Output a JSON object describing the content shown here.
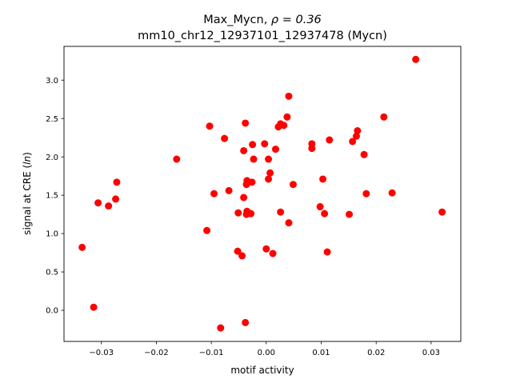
{
  "chart_data": {
    "type": "scatter",
    "title_line1_prefix": "Max_Mycn, ",
    "title_rho": "ρ = 0.36",
    "title_line2": "mm10_chr12_12937101_12937478 (Mycn)",
    "xlabel": "motif activity",
    "ylabel_prefix": "signal at CRE (",
    "ylabel_ln": "ln",
    "ylabel_suffix": ")",
    "xlim": [
      -0.0368,
      0.0354
    ],
    "ylim": [
      -0.406,
      3.44
    ],
    "xticks": [
      -0.03,
      -0.02,
      -0.01,
      0.0,
      0.01,
      0.02,
      0.03
    ],
    "xtick_labels": [
      "−0.03",
      "−0.02",
      "−0.01",
      "0.00",
      "0.01",
      "0.02",
      "0.03"
    ],
    "yticks": [
      0.0,
      0.5,
      1.0,
      1.5,
      2.0,
      2.5,
      3.0
    ],
    "ytick_labels": [
      "0.0",
      "0.5",
      "1.0",
      "1.5",
      "2.0",
      "2.5",
      "3.0"
    ],
    "grid": false,
    "marker_color": "#ff0000",
    "points": [
      [
        -0.0335,
        0.82
      ],
      [
        -0.0314,
        0.04
      ],
      [
        -0.0306,
        1.4
      ],
      [
        -0.0287,
        1.36
      ],
      [
        -0.0274,
        1.45
      ],
      [
        -0.0272,
        1.67
      ],
      [
        -0.0163,
        1.97
      ],
      [
        -0.0108,
        1.04
      ],
      [
        -0.0103,
        2.4
      ],
      [
        -0.0095,
        1.52
      ],
      [
        -0.0076,
        2.24
      ],
      [
        -0.0068,
        1.56
      ],
      [
        -0.0052,
        0.77
      ],
      [
        -0.0051,
        1.27
      ],
      [
        -0.0044,
        0.71
      ],
      [
        -0.0083,
        -0.23
      ],
      [
        -0.0038,
        -0.16
      ],
      [
        -0.0038,
        2.44
      ],
      [
        -0.0041,
        2.08
      ],
      [
        -0.0041,
        1.47
      ],
      [
        -0.0036,
        1.64
      ],
      [
        -0.0035,
        1.69
      ],
      [
        -0.0036,
        1.25
      ],
      [
        -0.0035,
        1.29
      ],
      [
        -0.0028,
        1.26
      ],
      [
        -0.0026,
        1.67
      ],
      [
        -0.0025,
        2.16
      ],
      [
        -0.0023,
        1.97
      ],
      [
        -0.0003,
        2.17
      ],
      [
        0.0,
        0.8
      ],
      [
        0.0004,
        1.71
      ],
      [
        0.0004,
        1.97
      ],
      [
        0.0007,
        1.79
      ],
      [
        0.0012,
        0.74
      ],
      [
        0.0017,
        2.1
      ],
      [
        0.0022,
        2.39
      ],
      [
        0.0026,
        1.28
      ],
      [
        0.0026,
        2.43
      ],
      [
        0.0032,
        2.41
      ],
      [
        0.0038,
        2.52
      ],
      [
        0.0041,
        2.79
      ],
      [
        0.0041,
        1.14
      ],
      [
        0.0049,
        1.64
      ],
      [
        0.0083,
        2.11
      ],
      [
        0.0083,
        2.17
      ],
      [
        0.0098,
        1.35
      ],
      [
        0.0103,
        1.71
      ],
      [
        0.0106,
        1.26
      ],
      [
        0.0111,
        0.76
      ],
      [
        0.0115,
        2.22
      ],
      [
        0.0151,
        1.25
      ],
      [
        0.0157,
        2.2
      ],
      [
        0.0164,
        2.27
      ],
      [
        0.0166,
        2.34
      ],
      [
        0.0178,
        2.03
      ],
      [
        0.0182,
        1.52
      ],
      [
        0.0214,
        2.52
      ],
      [
        0.0229,
        1.53
      ],
      [
        0.0272,
        3.27
      ],
      [
        0.032,
        1.28
      ]
    ]
  }
}
